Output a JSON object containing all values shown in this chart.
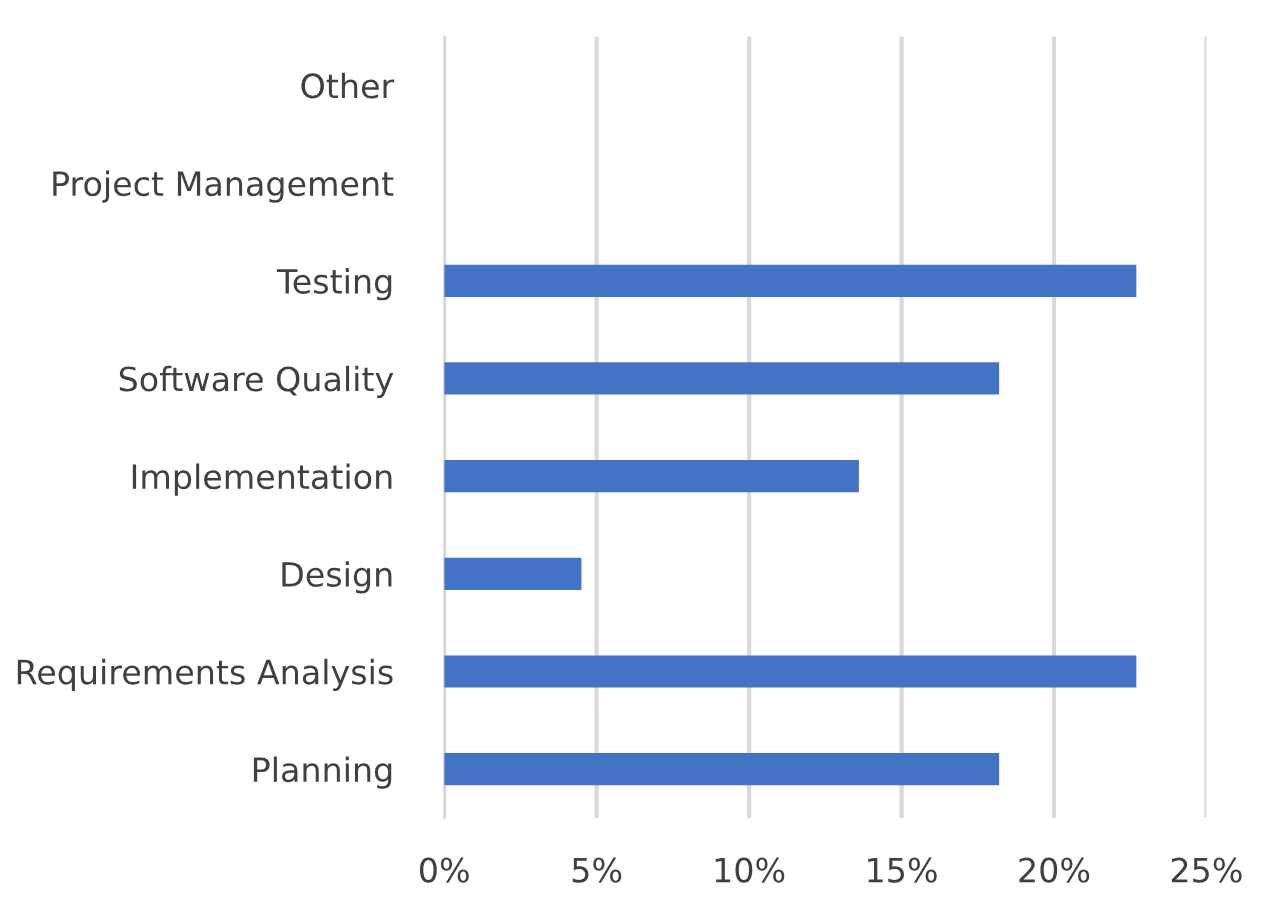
{
  "chart_data": {
    "type": "bar",
    "orientation": "horizontal",
    "categories": [
      "Other",
      "Project Management",
      "Testing",
      "Software Quality",
      "Implementation",
      "Design",
      "Requirements Analysis",
      "Planning"
    ],
    "values": [
      0,
      0,
      22.7,
      18.2,
      13.6,
      4.5,
      22.7,
      18.2
    ],
    "color": "#4472c4",
    "xlim": [
      0,
      25
    ],
    "xticks": [
      {
        "value": 0,
        "label": "0%"
      },
      {
        "value": 5,
        "label": "5%"
      },
      {
        "value": 10,
        "label": "10%"
      },
      {
        "value": 15,
        "label": "15%"
      },
      {
        "value": 20,
        "label": "20%"
      },
      {
        "value": 25,
        "label": "25%"
      }
    ],
    "grid": "x"
  }
}
